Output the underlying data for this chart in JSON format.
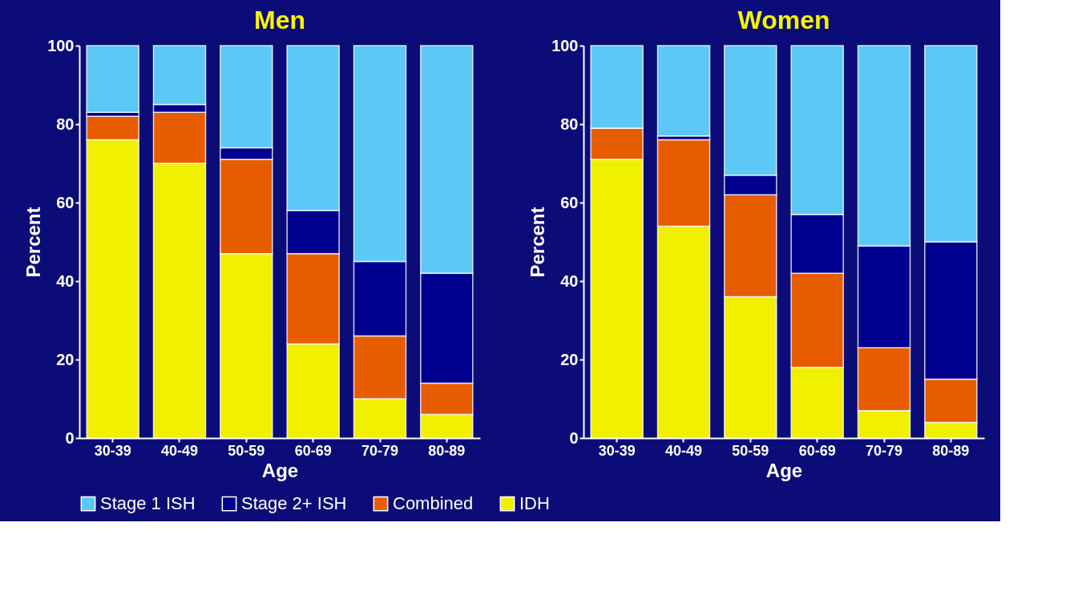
{
  "chart_data": [
    {
      "type": "bar",
      "title": "Men",
      "xlabel": "Age",
      "ylabel": "Percent",
      "stacked": true,
      "legend": "bottom",
      "grid": false,
      "categories": [
        "30-39",
        "40-49",
        "50-59",
        "60-69",
        "70-79",
        "80-89"
      ],
      "ylim": [
        0,
        100
      ],
      "yticks": [
        0,
        20,
        40,
        60,
        80,
        100
      ],
      "series": [
        {
          "name": "IDH",
          "color": "#f0f000",
          "values": [
            76,
            70,
            47,
            24,
            10,
            6
          ]
        },
        {
          "name": "Combined",
          "color": "#e85c00",
          "values": [
            6,
            13,
            24,
            23,
            16,
            8
          ]
        },
        {
          "name": "Stage 2+ ISH",
          "color": "#000090",
          "values": [
            1,
            2,
            3,
            11,
            19,
            28
          ]
        },
        {
          "name": "Stage 1 ISH",
          "color": "#5bc8f5",
          "values": [
            17,
            15,
            26,
            42,
            55,
            58
          ]
        }
      ]
    },
    {
      "type": "bar",
      "title": "Women",
      "xlabel": "Age",
      "ylabel": "Percent",
      "stacked": true,
      "legend": "bottom",
      "grid": false,
      "categories": [
        "30-39",
        "40-49",
        "50-59",
        "60-69",
        "70-79",
        "80-89"
      ],
      "ylim": [
        0,
        100
      ],
      "yticks": [
        0,
        20,
        40,
        60,
        80,
        100
      ],
      "series": [
        {
          "name": "IDH",
          "color": "#f0f000",
          "values": [
            71,
            54,
            36,
            18,
            7,
            4
          ]
        },
        {
          "name": "Combined",
          "color": "#e85c00",
          "values": [
            8,
            22,
            26,
            24,
            16,
            11
          ]
        },
        {
          "name": "Stage 2+ ISH",
          "color": "#000090",
          "values": [
            0,
            1,
            5,
            15,
            26,
            35
          ]
        },
        {
          "name": "Stage 1 ISH",
          "color": "#5bc8f5",
          "values": [
            21,
            23,
            33,
            43,
            51,
            50
          ]
        }
      ]
    }
  ]
}
